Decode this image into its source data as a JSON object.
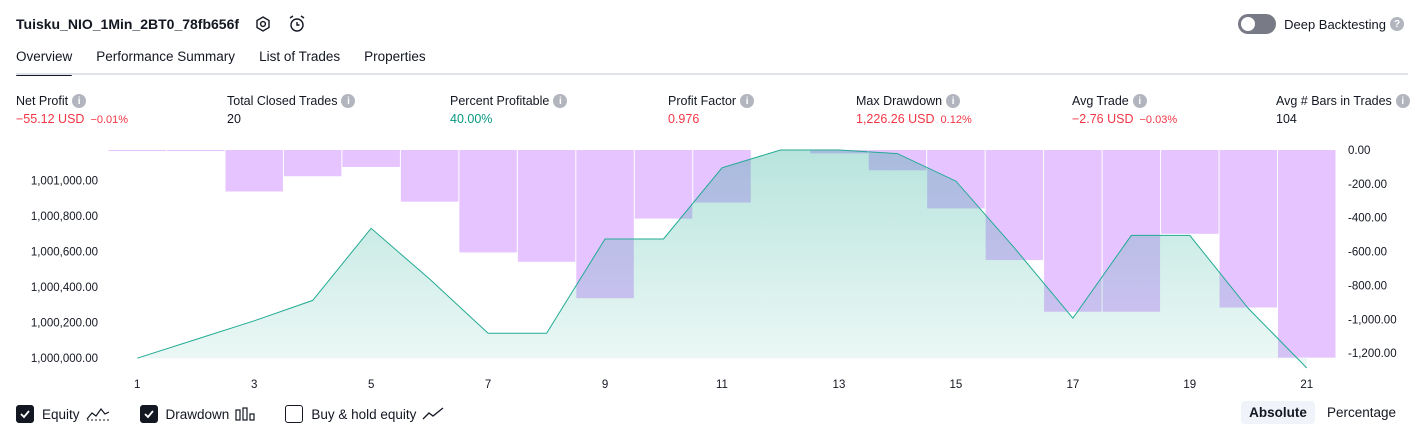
{
  "header": {
    "title": "Tuisku_NIO_1Min_2BT0_78fb656f",
    "deep_backtesting_label": "Deep Backtesting",
    "deep_backtesting_on": false
  },
  "tabs": [
    {
      "label": "Overview",
      "active": true
    },
    {
      "label": "Performance Summary",
      "active": false
    },
    {
      "label": "List of Trades",
      "active": false
    },
    {
      "label": "Properties",
      "active": false
    }
  ],
  "metrics": [
    {
      "label": "Net Profit",
      "value": "−55.12 USD",
      "pct": "−0.01%",
      "tone": "neg"
    },
    {
      "label": "Total Closed Trades",
      "value": "20",
      "pct": "",
      "tone": "neu"
    },
    {
      "label": "Percent Profitable",
      "value": "40.00%",
      "pct": "",
      "tone": "pos"
    },
    {
      "label": "Profit Factor",
      "value": "0.976",
      "pct": "",
      "tone": "neg"
    },
    {
      "label": "Max Drawdown",
      "value": "1,226.26 USD",
      "pct": "0.12%",
      "tone": "neg"
    },
    {
      "label": "Avg Trade",
      "value": "−2.76 USD",
      "pct": "−0.03%",
      "tone": "neg"
    },
    {
      "label": "Avg # Bars in Trades",
      "value": "104",
      "pct": "",
      "tone": "neu"
    }
  ],
  "chart_data": {
    "type": "area",
    "x_ticks": [
      "1",
      "3",
      "5",
      "7",
      "9",
      "11",
      "13",
      "15",
      "17",
      "19",
      "21"
    ],
    "left_axis": {
      "ticks": [
        "1,000,000.00",
        "1,000,200.00",
        "1,000,400.00",
        "1,000,600.00",
        "1,000,800.00",
        "1,001,000.00"
      ],
      "range": [
        999990,
        1001170
      ]
    },
    "right_axis": {
      "ticks": [
        "0.00",
        "-200.00",
        "-400.00",
        "-600.00",
        "-800.00",
        "-1,000.00",
        "-1,200.00"
      ],
      "range": [
        -1240,
        0
      ]
    },
    "series": [
      {
        "name": "Equity",
        "color": "#22ab94",
        "x": [
          1,
          2,
          3,
          4,
          5,
          6,
          7,
          8,
          9,
          10,
          11,
          12,
          13,
          14,
          15,
          16,
          17,
          18,
          19,
          20,
          21
        ],
        "values": [
          1000000,
          1000105,
          1000210,
          1000325,
          1000730,
          1000445,
          1000140,
          1000140,
          1000670,
          1000670,
          1001070,
          1001170,
          1001170,
          1001150,
          1000995,
          1000620,
          1000225,
          1000690,
          1000690,
          1000280,
          999945
        ]
      },
      {
        "name": "Drawdown",
        "color": "#c77dff",
        "x": [
          1,
          2,
          3,
          4,
          5,
          6,
          7,
          8,
          9,
          10,
          11,
          12,
          13,
          14,
          15,
          16,
          17,
          18,
          19,
          20,
          21
        ],
        "values": [
          -5,
          -5,
          -245,
          -155,
          -100,
          -305,
          -605,
          -660,
          -875,
          -405,
          -310,
          0,
          -20,
          -120,
          -345,
          -650,
          -955,
          -955,
          -495,
          -930,
          -1226
        ]
      }
    ],
    "grid": false
  },
  "legend": [
    {
      "label": "Equity",
      "checked": true,
      "icon": "equity-line-icon"
    },
    {
      "label": "Drawdown",
      "checked": true,
      "icon": "drawdown-bars-icon"
    },
    {
      "label": "Buy & hold equity",
      "checked": false,
      "icon": "buy-hold-line-icon"
    }
  ],
  "modes": [
    {
      "label": "Absolute",
      "active": true
    },
    {
      "label": "Percentage",
      "active": false
    }
  ]
}
